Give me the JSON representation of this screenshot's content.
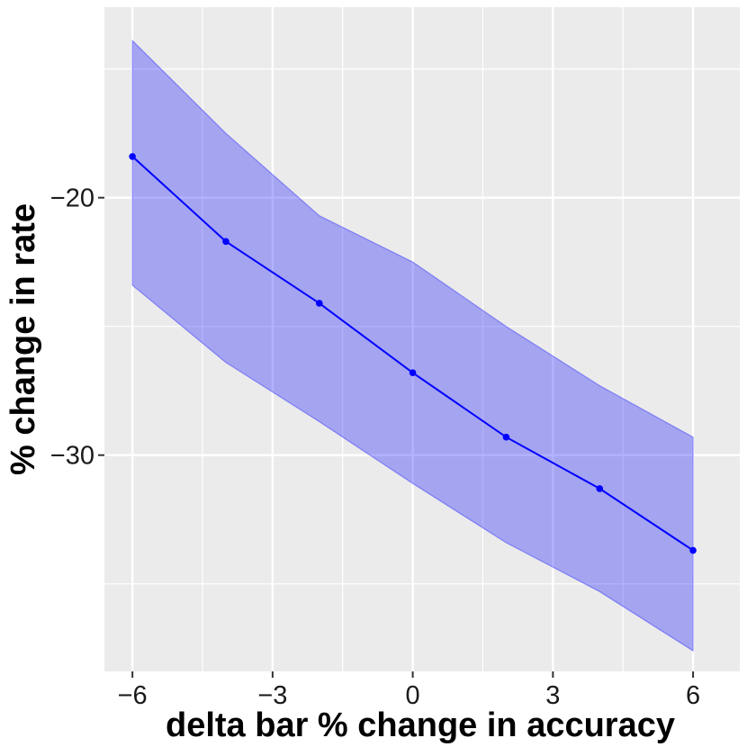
{
  "chart_data": {
    "type": "line",
    "title": "",
    "xlabel": "delta bar % change in accuracy",
    "ylabel": "% change in rate",
    "xlim": [
      -6.6,
      7.0
    ],
    "ylim": [
      -38.4,
      -12.6
    ],
    "x_ticks": [
      -6,
      -3,
      0,
      3,
      6
    ],
    "x_tick_labels": [
      "−6",
      "−3",
      "0",
      "3",
      "6"
    ],
    "y_ticks": [
      -30,
      -20
    ],
    "y_tick_labels": [
      "−30",
      "−20"
    ],
    "x_minor_ticks": [
      -4.5,
      -1.5,
      1.5,
      4.5
    ],
    "y_minor_ticks": [
      -35,
      -25,
      -15
    ],
    "grid": true,
    "legend": "none",
    "series": [
      {
        "x": [
          -6,
          -4,
          -2,
          0,
          2,
          4,
          6
        ],
        "y": [
          -18.4,
          -21.7,
          -24.1,
          -26.8,
          -29.3,
          -31.3,
          -33.7
        ],
        "lower": [
          -23.4,
          -26.4,
          -28.7,
          -31.1,
          -33.4,
          -35.3,
          -37.6
        ],
        "upper": [
          -13.9,
          -17.5,
          -20.7,
          -22.5,
          -25.0,
          -27.3,
          -29.3
        ]
      }
    ],
    "colors": {
      "line": "#0000ff",
      "band": "#0000ff",
      "band_opacity": 0.3,
      "panel_background": "#ebebeb",
      "grid_major": "#ffffff",
      "grid_minor": "#ffffff"
    }
  }
}
